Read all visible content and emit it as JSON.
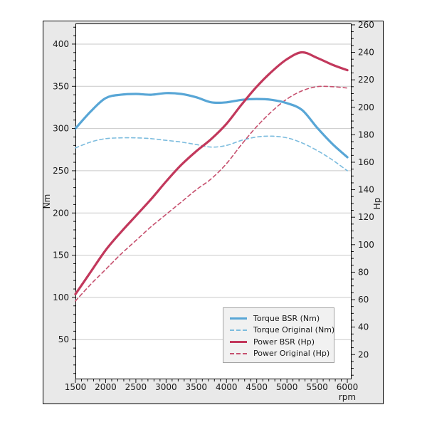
{
  "figure": {
    "bg_color": "#e9e9e9",
    "plot_bg": "#ffffff",
    "grid_color": "#c9c9c9",
    "spine_color": "#000000",
    "text_color": "#1a1a1a"
  },
  "axes": {
    "x": {
      "label": "rpm",
      "range": [
        1500,
        6070
      ],
      "ticks": [
        1500,
        2000,
        2500,
        3000,
        3500,
        4000,
        4500,
        5000,
        5500,
        6000
      ],
      "minor_step": 100
    },
    "nm": {
      "label": "Nm",
      "range": [
        3,
        424.4
      ],
      "ticks": [
        50,
        100,
        150,
        200,
        250,
        300,
        350,
        400
      ],
      "minor_step": 10,
      "grid": true
    },
    "hp": {
      "label": "Hp",
      "range": [
        2,
        261
      ],
      "ticks": [
        20,
        40,
        60,
        80,
        100,
        120,
        140,
        160,
        180,
        200,
        220,
        240,
        260
      ],
      "minor_step": 5,
      "grid": false
    }
  },
  "legend": {
    "position": "lower-right"
  },
  "chart_data": {
    "type": "line",
    "title": "",
    "xlabel": "rpm",
    "ylabel_left": "Nm",
    "ylabel_right": "Hp",
    "grid": "horizontal-only",
    "legend_position": "lower right",
    "x": [
      1500,
      1750,
      2000,
      2250,
      2500,
      2750,
      3000,
      3250,
      3500,
      3750,
      4000,
      4250,
      4500,
      4750,
      5000,
      5250,
      5500,
      5750,
      6000
    ],
    "series": [
      {
        "name": "Torque BSR (Nm)",
        "axis": "nm",
        "style": "solid",
        "color": "#58a6d6",
        "width": 3.2,
        "values": [
          300,
          320,
          336,
          340,
          341,
          340,
          342,
          341,
          337,
          331,
          331,
          334,
          335,
          334,
          330,
          322,
          301,
          282,
          266
        ]
      },
      {
        "name": "Torque Original (Nm)",
        "axis": "nm",
        "style": "dashed",
        "color": "#7cbcde",
        "width": 1.6,
        "values": [
          277,
          284,
          288,
          289,
          289,
          288,
          286,
          284,
          281,
          278,
          280,
          286,
          290,
          291,
          289,
          283,
          274,
          263,
          250
        ]
      },
      {
        "name": "Power BSR (Hp)",
        "axis": "hp",
        "style": "solid",
        "color": "#c2385c",
        "width": 3.2,
        "values": [
          64,
          80,
          96,
          109,
          121,
          133,
          146,
          158,
          168,
          177,
          188,
          202,
          215,
          226,
          235,
          240,
          236,
          231,
          227
        ]
      },
      {
        "name": "Power Original (Hp)",
        "axis": "hp",
        "style": "dashed",
        "color": "#c6506e",
        "width": 1.6,
        "values": [
          59,
          71,
          82,
          93,
          103,
          113,
          122,
          131,
          140,
          148,
          159,
          173,
          186,
          197,
          206,
          212,
          215,
          215,
          214
        ]
      }
    ]
  }
}
